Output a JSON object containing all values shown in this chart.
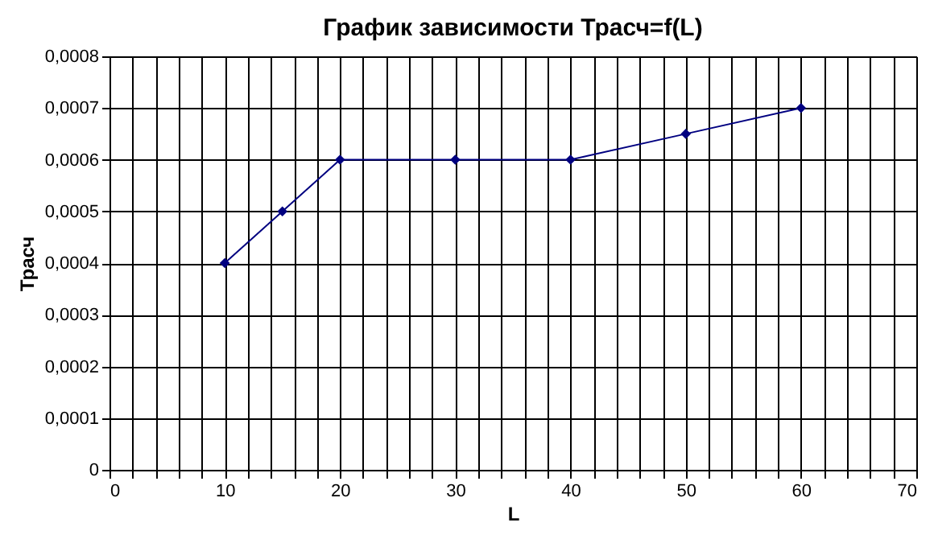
{
  "chart_data": {
    "type": "line",
    "title": "График зависимости Трасч=f(L)",
    "xlabel": "L",
    "ylabel": "Трасч",
    "x": [
      10,
      15,
      20,
      30,
      40,
      50,
      60
    ],
    "series": [
      {
        "color": "#000080",
        "values": [
          0.0004,
          0.0005,
          0.0006,
          0.0006,
          0.0006,
          0.00065,
          0.0007
        ]
      }
    ],
    "xlim": [
      0,
      70
    ],
    "xticks": [
      0,
      {
        "value": 2,
        "label": null
      },
      {
        "value": 4,
        "label": null
      },
      {
        "value": 6,
        "label": null
      },
      {
        "value": 8,
        "label": null
      },
      10,
      {
        "value": 12,
        "label": null
      },
      {
        "value": 14,
        "label": null
      },
      {
        "value": 16,
        "label": null
      },
      {
        "value": 18,
        "label": null
      },
      20,
      {
        "value": 22,
        "label": null
      },
      {
        "value": 24,
        "label": null
      },
      {
        "value": 26,
        "label": null
      },
      {
        "value": 28,
        "label": null
      },
      30,
      {
        "value": 32,
        "label": null
      },
      {
        "value": 34,
        "label": null
      },
      {
        "value": 36,
        "label": null
      },
      {
        "value": 38,
        "label": null
      },
      40,
      {
        "value": 42,
        "label": null
      },
      {
        "value": 44,
        "label": null
      },
      {
        "value": 46,
        "label": null
      },
      {
        "value": 48,
        "label": null
      },
      50,
      {
        "value": 52,
        "label": null
      },
      {
        "value": 54,
        "label": null
      },
      {
        "value": 56,
        "label": null
      },
      {
        "value": 58,
        "label": null
      },
      60,
      {
        "value": 62,
        "label": null
      },
      {
        "value": 64,
        "label": null
      },
      {
        "value": 66,
        "label": null
      },
      {
        "value": 68,
        "label": null
      },
      70
    ],
    "ylim": [
      0,
      0.0008
    ],
    "yticks": [
      0,
      {
        "value": 0.0001,
        "label": "0,0001"
      },
      {
        "value": 0.0002,
        "label": "0,0002"
      },
      {
        "value": 0.0003,
        "label": "0,0003"
      },
      {
        "value": 0.0004,
        "label": "0,0004"
      },
      {
        "value": 0.0005,
        "label": "0,0005"
      },
      {
        "value": 0.0006,
        "label": "0,0006"
      },
      {
        "value": 0.0007,
        "label": "0,0007"
      },
      {
        "value": 0.0008,
        "label": "0,0008"
      }
    ],
    "grid": true,
    "marker": "diamond",
    "line_style": "solid"
  }
}
